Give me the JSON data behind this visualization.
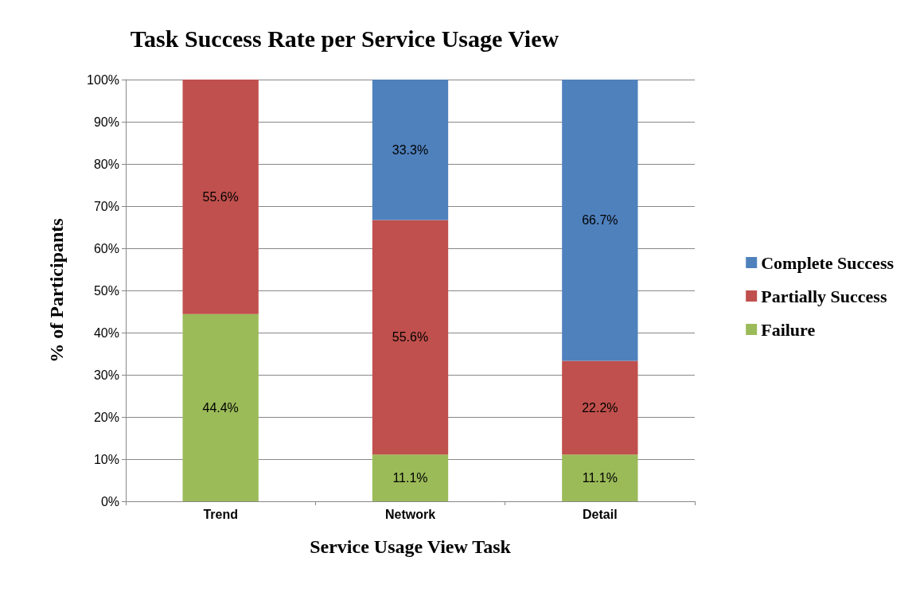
{
  "chart_data": {
    "type": "bar",
    "stacked": true,
    "title": "Task Success Rate per Service Usage View",
    "xlabel": "Service Usage View Task",
    "ylabel": "% of Participants",
    "categories": [
      "Trend",
      "Network",
      "Detail"
    ],
    "series": [
      {
        "name": "Failure",
        "color": "#9bbb59",
        "values": [
          44.4,
          11.1,
          11.1
        ],
        "value_labels": [
          "44.4%",
          "11.1%",
          "11.1%"
        ]
      },
      {
        "name": "Partially Success",
        "color": "#c0504d",
        "values": [
          55.6,
          55.6,
          22.2
        ],
        "value_labels": [
          "55.6%",
          "55.6%",
          "22.2%"
        ]
      },
      {
        "name": "Complete Success",
        "color": "#4f81bd",
        "values": [
          null,
          33.3,
          66.7
        ],
        "value_labels": [
          null,
          "33.3%",
          "66.7%"
        ]
      }
    ],
    "ylim": [
      0,
      100
    ],
    "yticks": [
      {
        "value": 0,
        "label": "0%"
      },
      {
        "value": 10,
        "label": "10%"
      },
      {
        "value": 20,
        "label": "20%"
      },
      {
        "value": 30,
        "label": "30%"
      },
      {
        "value": 40,
        "label": "40%"
      },
      {
        "value": 50,
        "label": "50%"
      },
      {
        "value": 60,
        "label": "60%"
      },
      {
        "value": 70,
        "label": "70%"
      },
      {
        "value": 80,
        "label": "80%"
      },
      {
        "value": 90,
        "label": "90%"
      },
      {
        "value": 100,
        "label": "100%"
      }
    ],
    "grid": "y",
    "legend": "right"
  }
}
